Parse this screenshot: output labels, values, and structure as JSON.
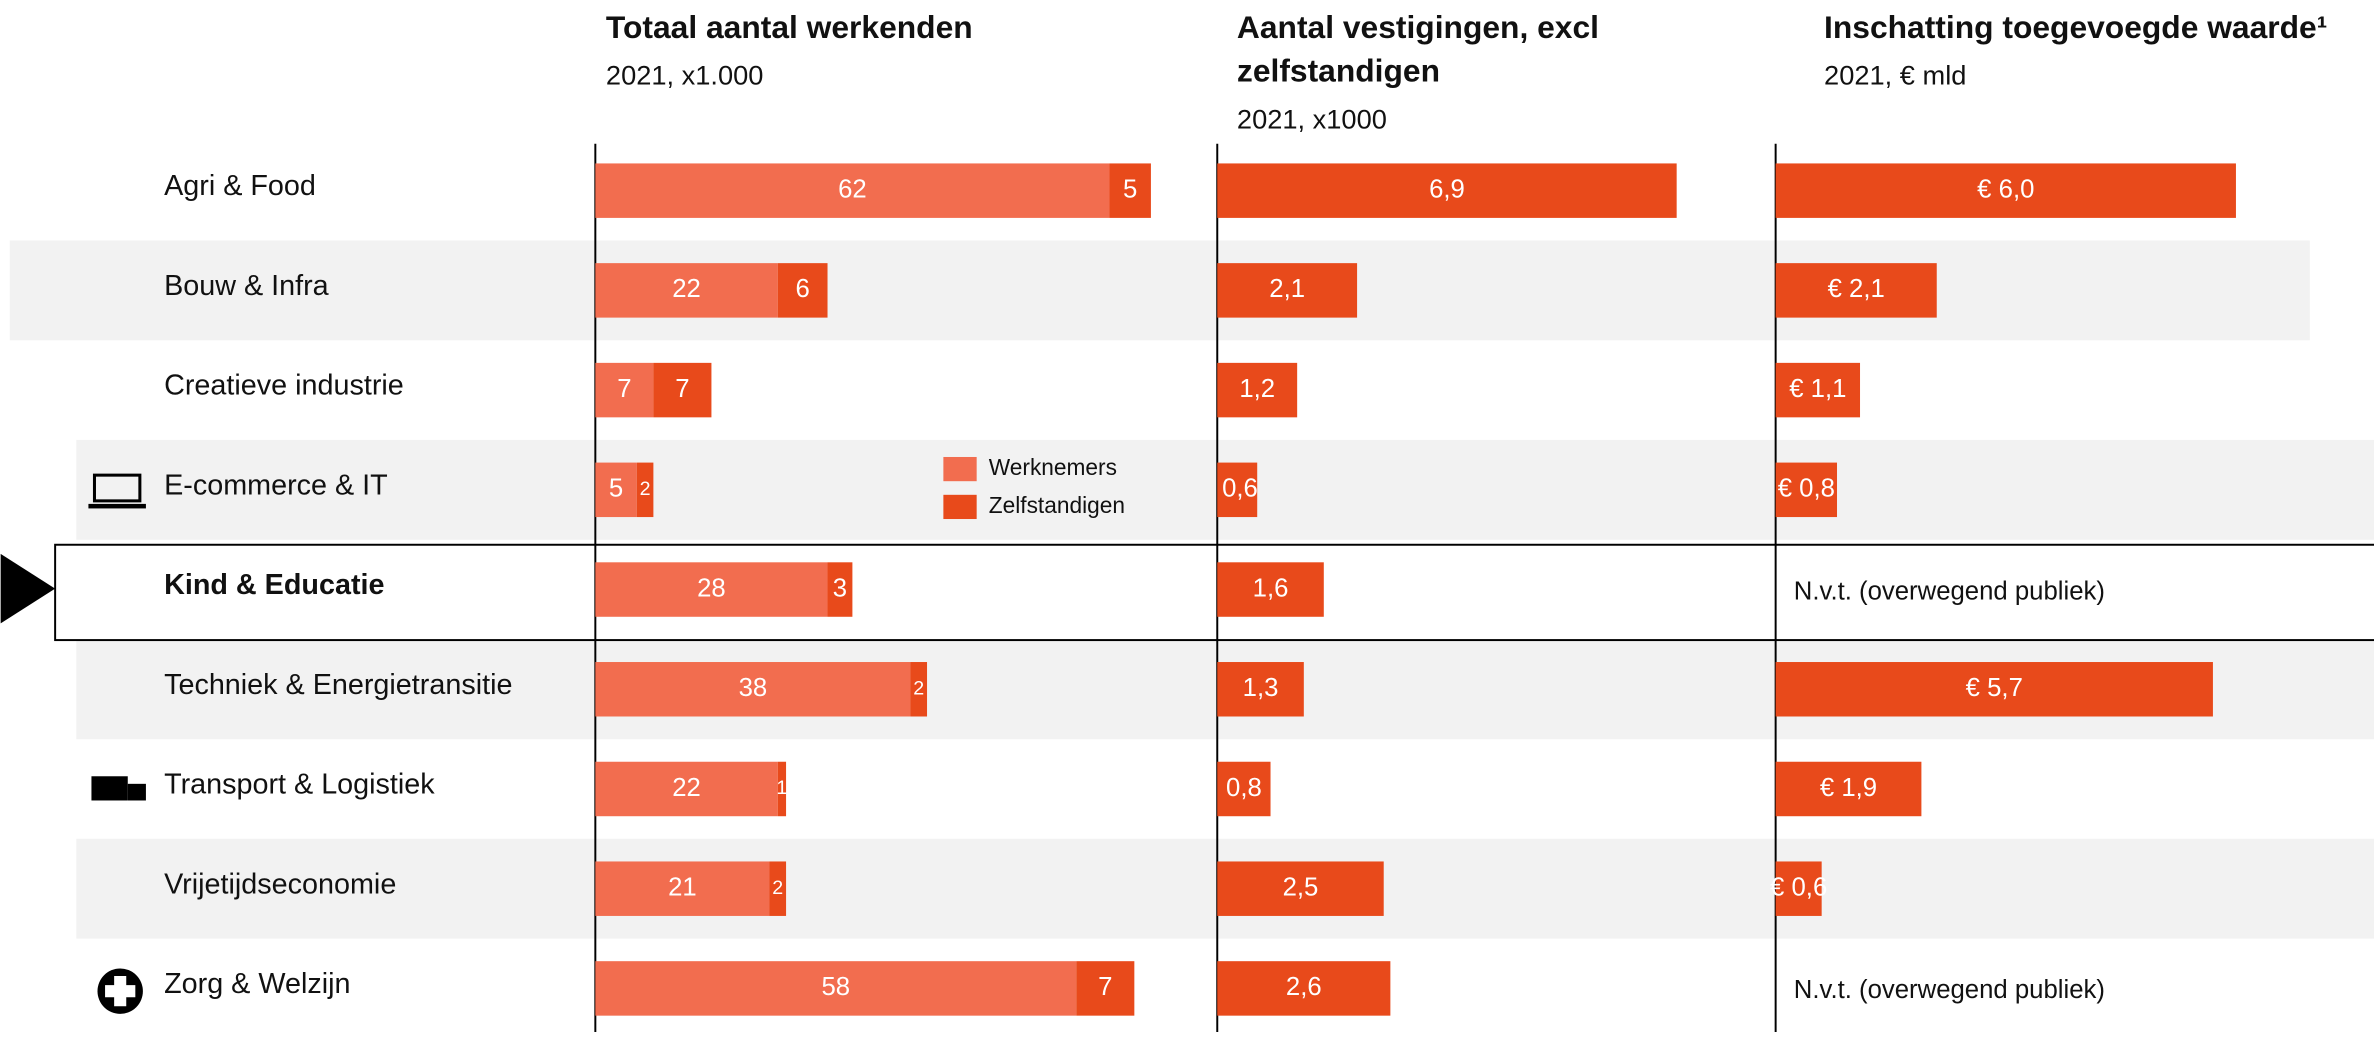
{
  "chart_data": [
    {
      "type": "stacked-bar",
      "title": "Totaal aantal werkenden",
      "subtitle": "2021, x1.000",
      "categories": [
        "Agri & Food",
        "Bouw & Infra",
        "Creatieve industrie",
        "E-commerce & IT",
        "Kind & Educatie",
        "Techniek & Energietransitie",
        "Transport & Logistiek",
        "Vrijetijdseconomie",
        "Zorg & Welzijn"
      ],
      "series": [
        {
          "name": "Werknemers",
          "color": "#f26d4f",
          "values": [
            62,
            22,
            7,
            5,
            28,
            38,
            22,
            21,
            58
          ]
        },
        {
          "name": "Zelfstandigen",
          "color": "#e84a1b",
          "values": [
            5,
            6,
            7,
            2,
            3,
            2,
            1,
            2,
            7
          ]
        }
      ]
    },
    {
      "type": "bar",
      "title": "Aantal vestigingen, excl zelfstandigen",
      "subtitle": "2021, x1000",
      "color": "#e84a1b",
      "values": [
        6.9,
        2.1,
        1.2,
        0.6,
        1.6,
        1.3,
        0.8,
        2.5,
        2.6
      ],
      "value_labels": [
        "6,9",
        "2,1",
        "1,2",
        "0,6",
        "1,6",
        "1,3",
        "0,8",
        "2,5",
        "2,6"
      ]
    },
    {
      "type": "bar",
      "title": "Inschatting toegevoegde waarde¹",
      "subtitle": "2021, € mld",
      "color": "#e84a1b",
      "values": [
        6.0,
        2.1,
        1.1,
        0.8,
        null,
        5.7,
        1.9,
        0.6,
        null
      ],
      "value_labels": [
        "€ 6,0",
        "€ 2,1",
        "€ 1,1",
        "€ 0,8",
        "N.v.t. (overwegend publiek)",
        "€ 5,7",
        "€ 1,9",
        "€ 0,6",
        "N.v.t. (overwegend publiek)"
      ]
    }
  ]
}
